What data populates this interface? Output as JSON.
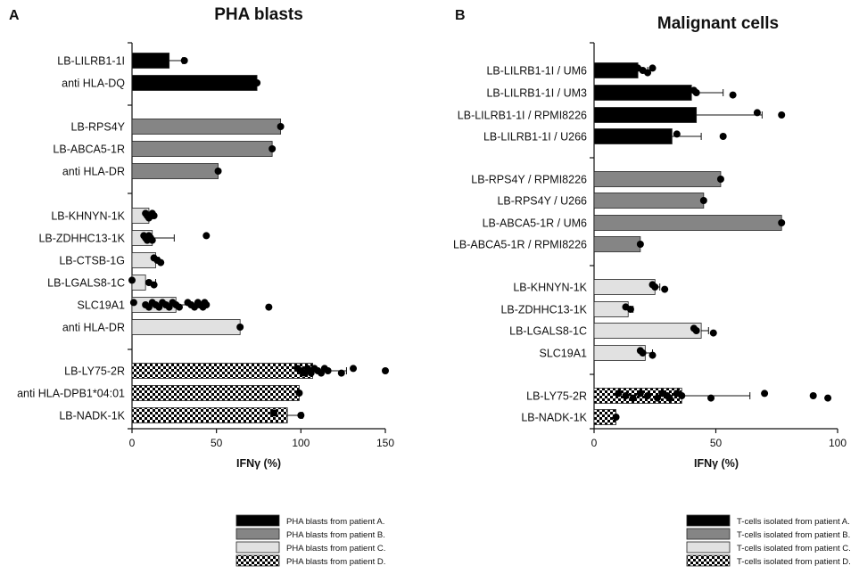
{
  "colors": {
    "patient_a": "#000000",
    "patient_b": "#858585",
    "patient_c": "#e1e1e1",
    "patient_d": "checker"
  },
  "chart_data": [
    {
      "type": "bar",
      "orientation": "horizontal",
      "panel_label": "A",
      "title": "PHA blasts",
      "xlabel": "IFNγ (%)",
      "xlim": [
        0,
        150
      ],
      "xticks": [
        "0",
        "50",
        "100",
        "150"
      ],
      "groups": [
        {
          "patient": "a",
          "bars": [
            {
              "label": "LB-LILRB1-1I",
              "value": 22,
              "err": 8,
              "points": [
                31
              ]
            },
            {
              "label": "anti HLA-DQ",
              "value": 74,
              "err": 0,
              "points": [
                74
              ]
            }
          ]
        },
        {
          "patient": "b",
          "bars": [
            {
              "label": "LB-RPS4Y",
              "value": 88,
              "err": 0,
              "points": [
                88
              ]
            },
            {
              "label": "LB-ABCA5-1R",
              "value": 83,
              "err": 0,
              "points": [
                83
              ]
            },
            {
              "label": "anti HLA-DR",
              "value": 51,
              "err": 0,
              "points": [
                51
              ]
            }
          ]
        },
        {
          "patient": "c",
          "bars": [
            {
              "label": "LB-KHNYN-1K",
              "value": 10,
              "err": 2,
              "points": [
                8,
                9,
                10,
                12,
                13
              ]
            },
            {
              "label": "LB-ZDHHC13-1K",
              "value": 12,
              "err": 13,
              "points": [
                7,
                8,
                9,
                10,
                11,
                12,
                44
              ]
            },
            {
              "label": "LB-CTSB-1G",
              "value": 14,
              "err": 2,
              "points": [
                13,
                15,
                17
              ]
            },
            {
              "label": "LB-LGALS8-1C",
              "value": 8,
              "err": 6,
              "points": [
                0,
                10,
                13
              ]
            },
            {
              "label": "SLC19A1",
              "value": 26,
              "err": 12,
              "points": [
                1,
                8,
                10,
                12,
                14,
                16,
                18,
                20,
                22,
                24,
                26,
                28,
                33,
                35,
                37,
                39,
                40,
                42,
                43,
                44,
                81
              ]
            },
            {
              "label": "anti HLA-DR",
              "value": 64,
              "err": 0,
              "points": [
                64
              ]
            }
          ]
        },
        {
          "patient": "d",
          "bars": [
            {
              "label": "LB-LY75-2R",
              "value": 107,
              "err": 20,
              "points": [
                98,
                100,
                102,
                104,
                105,
                106,
                108,
                110,
                112,
                114,
                116,
                124,
                131,
                150
              ]
            },
            {
              "label": "anti HLA-DPB1*04:01",
              "value": 99,
              "err": 0,
              "points": [
                99
              ]
            },
            {
              "label": "LB-NADK-1K",
              "value": 92,
              "err": 9,
              "points": [
                84,
                100
              ]
            }
          ]
        }
      ],
      "legend": [
        {
          "patient": "a",
          "label": "PHA blasts from patient A."
        },
        {
          "patient": "b",
          "label": "PHA blasts from patient B."
        },
        {
          "patient": "c",
          "label": "PHA blasts from patient C."
        },
        {
          "patient": "d",
          "label": "PHA blasts from patient D."
        }
      ]
    },
    {
      "type": "bar",
      "orientation": "horizontal",
      "panel_label": "B",
      "title": "Malignant cells",
      "xlabel": "IFNγ (%)",
      "xlim": [
        0,
        100
      ],
      "xticks": [
        "0",
        "50",
        "100"
      ],
      "groups": [
        {
          "patient": "a",
          "bars": [
            {
              "label": "LB-LILRB1-1I / UM6",
              "value": 18,
              "err": 4,
              "points": [
                18,
                20,
                22,
                24
              ]
            },
            {
              "label": "LB-LILRB1-1I / UM3",
              "value": 40,
              "err": 13,
              "points": [
                41,
                42,
                57
              ]
            },
            {
              "label": "LB-LILRB1-1I / RPMI8226",
              "value": 42,
              "err": 27,
              "points": [
                67,
                77
              ]
            },
            {
              "label": "LB-LILRB1-1I / U266",
              "value": 32,
              "err": 12,
              "points": [
                34,
                53
              ]
            }
          ]
        },
        {
          "patient": "b",
          "bars": [
            {
              "label": "LB-RPS4Y / RPMI8226",
              "value": 52,
              "err": 0,
              "points": [
                52
              ]
            },
            {
              "label": "LB-RPS4Y / U266",
              "value": 45,
              "err": 0,
              "points": [
                45
              ]
            },
            {
              "label": "LB-ABCA5-1R / UM6",
              "value": 77,
              "err": 0,
              "points": [
                77
              ]
            },
            {
              "label": "LB-ABCA5-1R / RPMI8226",
              "value": 19,
              "err": 0,
              "points": [
                19
              ]
            }
          ]
        },
        {
          "patient": "c",
          "bars": [
            {
              "label": "LB-KHNYN-1K",
              "value": 25,
              "err": 2,
              "points": [
                24,
                25,
                29
              ]
            },
            {
              "label": "LB-ZDHHC13-1K",
              "value": 14,
              "err": 2,
              "points": [
                13,
                15
              ]
            },
            {
              "label": "LB-LGALS8-1C",
              "value": 44,
              "err": 3,
              "points": [
                41,
                42,
                49
              ]
            },
            {
              "label": "SLC19A1",
              "value": 21,
              "err": 3,
              "points": [
                19,
                20,
                24
              ]
            }
          ]
        },
        {
          "patient": "d",
          "bars": [
            {
              "label": "LB-LY75-2R",
              "value": 36,
              "err": 28,
              "points": [
                10,
                13,
                16,
                19,
                22,
                26,
                28,
                30,
                31,
                34,
                36,
                48,
                70,
                90,
                96
              ]
            },
            {
              "label": "LB-NADK-1K",
              "value": 9,
              "err": 0,
              "points": [
                9
              ]
            }
          ]
        }
      ],
      "legend": [
        {
          "patient": "a",
          "label": "T-cells isolated from patient A."
        },
        {
          "patient": "b",
          "label": "T-cells isolated from patient B."
        },
        {
          "patient": "c",
          "label": "T-cells isolated from patient C."
        },
        {
          "patient": "d",
          "label": "T-cells isolated from patient D."
        }
      ]
    }
  ]
}
